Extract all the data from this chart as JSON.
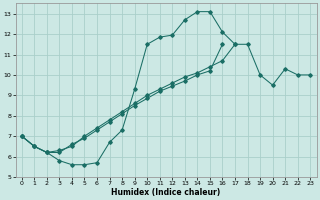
{
  "xlabel": "Humidex (Indice chaleur)",
  "xlim": [
    -0.5,
    23.5
  ],
  "ylim": [
    5,
    13.5
  ],
  "xticks": [
    0,
    1,
    2,
    3,
    4,
    5,
    6,
    7,
    8,
    9,
    10,
    11,
    12,
    13,
    14,
    15,
    16,
    17,
    18,
    19,
    20,
    21,
    22,
    23
  ],
  "yticks": [
    5,
    6,
    7,
    8,
    9,
    10,
    11,
    12,
    13
  ],
  "bg_color": "#cce8e4",
  "grid_color": "#aacfca",
  "line_color": "#1a6e65",
  "line1_x": [
    0,
    1,
    2,
    3,
    4,
    5,
    6,
    7,
    8,
    9,
    10,
    11,
    12,
    13,
    14,
    15,
    16,
    17
  ],
  "line1_y": [
    7.0,
    6.5,
    6.2,
    5.8,
    5.6,
    5.6,
    5.7,
    6.7,
    7.3,
    9.3,
    11.5,
    11.85,
    11.95,
    12.7,
    13.1,
    13.1,
    12.1,
    11.5
  ],
  "line2_x": [
    0,
    1,
    2,
    3,
    4,
    5,
    6,
    7,
    8,
    9,
    10,
    11,
    12,
    13,
    14,
    15,
    16,
    17,
    18,
    19,
    20,
    21,
    22,
    23
  ],
  "line2_y": [
    7.0,
    6.5,
    6.2,
    6.3,
    6.5,
    7.0,
    7.4,
    7.8,
    8.2,
    8.6,
    9.0,
    9.3,
    9.6,
    9.9,
    10.1,
    10.4,
    10.7,
    11.5,
    11.5,
    10.0,
    9.5,
    10.3,
    10.0,
    10.0
  ],
  "line3_x": [
    0,
    1,
    2,
    3,
    4,
    5,
    6,
    7,
    8,
    9,
    10,
    11,
    12,
    13,
    14,
    15,
    16
  ],
  "line3_y": [
    7.0,
    6.5,
    6.2,
    6.2,
    6.6,
    6.9,
    7.3,
    7.7,
    8.1,
    8.5,
    8.85,
    9.2,
    9.45,
    9.7,
    10.0,
    10.2,
    11.5
  ]
}
